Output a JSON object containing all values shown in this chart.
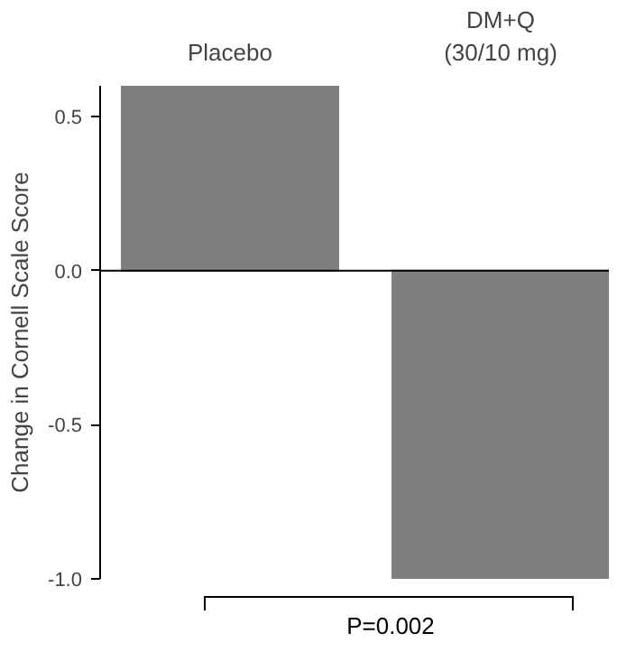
{
  "chart_data": {
    "type": "bar",
    "ylabel": "Change in Cornell Scale Score",
    "categories": [
      "Placebo",
      "DM+Q\n(30/10 mg)"
    ],
    "values": [
      0.6,
      -1.0
    ],
    "color": "#7f7f7f",
    "ylim": [
      -1.0,
      0.6
    ],
    "yticks": [
      {
        "value": -1.0,
        "label": "-1.0"
      },
      {
        "value": -0.5,
        "label": "-0.5"
      },
      {
        "value": 0.0,
        "label": "0.0"
      },
      {
        "value": 0.5,
        "label": "0.5"
      }
    ],
    "ref_lines": [
      {
        "axis": "y",
        "value": 0
      }
    ],
    "annotations": [
      "P=0.002"
    ],
    "grid": false
  }
}
